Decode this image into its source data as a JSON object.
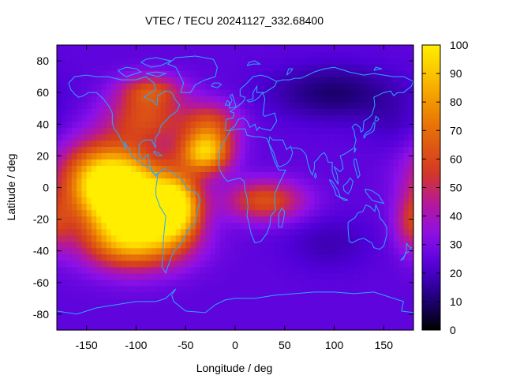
{
  "chart_data": {
    "type": "heatmap",
    "title": "VTEC / TECU 20241127_332.68400",
    "xlabel": "Longitude / deg",
    "ylabel": "Latitude / deg",
    "xlim": [
      -180,
      180
    ],
    "ylim": [
      -90,
      90
    ],
    "x_ticks": [
      -150,
      -100,
      -50,
      0,
      50,
      100,
      150
    ],
    "y_ticks": [
      -80,
      -60,
      -40,
      -20,
      0,
      20,
      40,
      60,
      80
    ],
    "colorbar": {
      "range": [
        0,
        100
      ],
      "ticks": [
        0,
        10,
        20,
        30,
        40,
        50,
        60,
        70,
        80,
        90,
        100
      ],
      "palette": [
        "#000000",
        "#20007a",
        "#5000d8",
        "#8c10e8",
        "#b5189a",
        "#d43a20",
        "#e06010",
        "#f08c00",
        "#fbbf00",
        "#ffee00"
      ]
    },
    "background_level": 25,
    "features": [
      {
        "name": "pacific-equatorial-peak",
        "lon": -105,
        "lat": -10,
        "value": 98,
        "lon_spread": 32,
        "lat_spread": 20
      },
      {
        "name": "west-pacific-crest",
        "lon": -135,
        "lat": 5,
        "value": 82,
        "lon_spread": 30,
        "lat_spread": 17
      },
      {
        "name": "south-pacific-crest",
        "lon": -100,
        "lat": -35,
        "value": 62,
        "lon_spread": 38,
        "lat_spread": 12
      },
      {
        "name": "south-america-peak",
        "lon": -60,
        "lat": -12,
        "value": 92,
        "lon_spread": 18,
        "lat_spread": 14
      },
      {
        "name": "atlantic-crest",
        "lon": -30,
        "lat": 22,
        "value": 86,
        "lon_spread": 18,
        "lat_spread": 9
      },
      {
        "name": "africa-tongue",
        "lon": 30,
        "lat": -8,
        "value": 62,
        "lon_spread": 28,
        "lat_spread": 9
      },
      {
        "name": "north-america",
        "lon": -90,
        "lat": 45,
        "value": 58,
        "lon_spread": 28,
        "lat_spread": 12
      },
      {
        "name": "arctic-canada",
        "lon": -85,
        "lat": 62,
        "value": 52,
        "lon_spread": 22,
        "lat_spread": 7
      },
      {
        "name": "north-atlantic",
        "lon": -25,
        "lat": 40,
        "value": 58,
        "lon_spread": 20,
        "lat_spread": 10
      },
      {
        "name": "australia-patch",
        "lon": 178,
        "lat": -22,
        "value": 48,
        "lon_spread": 12,
        "lat_spread": 12
      },
      {
        "name": "siberia-low",
        "lon": 100,
        "lat": 60,
        "value": 10,
        "lon_spread": 45,
        "lat_spread": 12
      },
      {
        "name": "indian-ocean-low",
        "lon": 95,
        "lat": -35,
        "value": 18,
        "lon_spread": 30,
        "lat_spread": 12
      },
      {
        "name": "north-pacific-low",
        "lon": 160,
        "lat": 40,
        "value": 20,
        "lon_spread": 20,
        "lat_spread": 12
      }
    ]
  }
}
